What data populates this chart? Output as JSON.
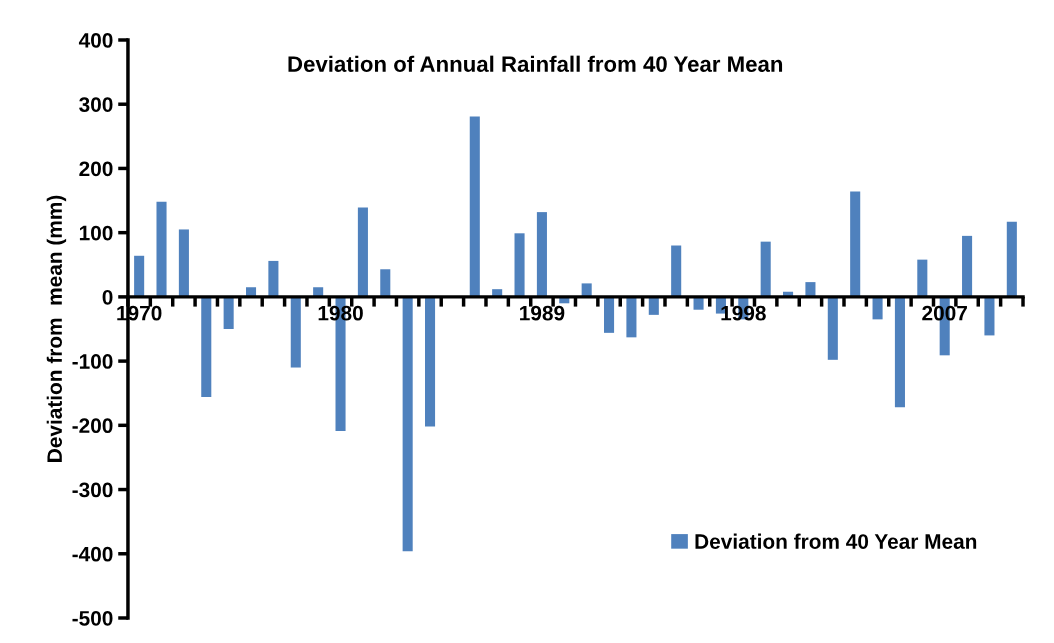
{
  "chart_data": {
    "type": "bar",
    "title": "Deviation of Annual Rainfall from 40 Year Mean",
    "ylabel": "Deviation from  mean (mm)",
    "categories": [
      "1970",
      null,
      null,
      null,
      null,
      null,
      null,
      null,
      null,
      "1980",
      null,
      null,
      null,
      null,
      null,
      null,
      null,
      null,
      "1989",
      null,
      null,
      null,
      null,
      null,
      null,
      null,
      null,
      "1998",
      null,
      null,
      null,
      null,
      null,
      null,
      null,
      null,
      "2007",
      null,
      null,
      null
    ],
    "series": [
      {
        "name": "Deviation from 40 Year Mean",
        "color": "#4f81bd",
        "values": [
          64,
          148,
          105,
          -156,
          -50,
          15,
          56,
          -110,
          15,
          -209,
          139,
          43,
          -396,
          -202,
          null,
          281,
          12,
          99,
          132,
          -10,
          21,
          -56,
          -63,
          -28,
          80,
          -20,
          -26,
          -35,
          86,
          8,
          23,
          -98,
          164,
          -35,
          -172,
          58,
          -91,
          95,
          -60,
          117
        ]
      }
    ],
    "ylim": [
      -500,
      400
    ],
    "yticks": [
      -500,
      -400,
      -300,
      -200,
      -100,
      0,
      100,
      200,
      300,
      400
    ],
    "grid": false,
    "legend": "bottom right"
  }
}
